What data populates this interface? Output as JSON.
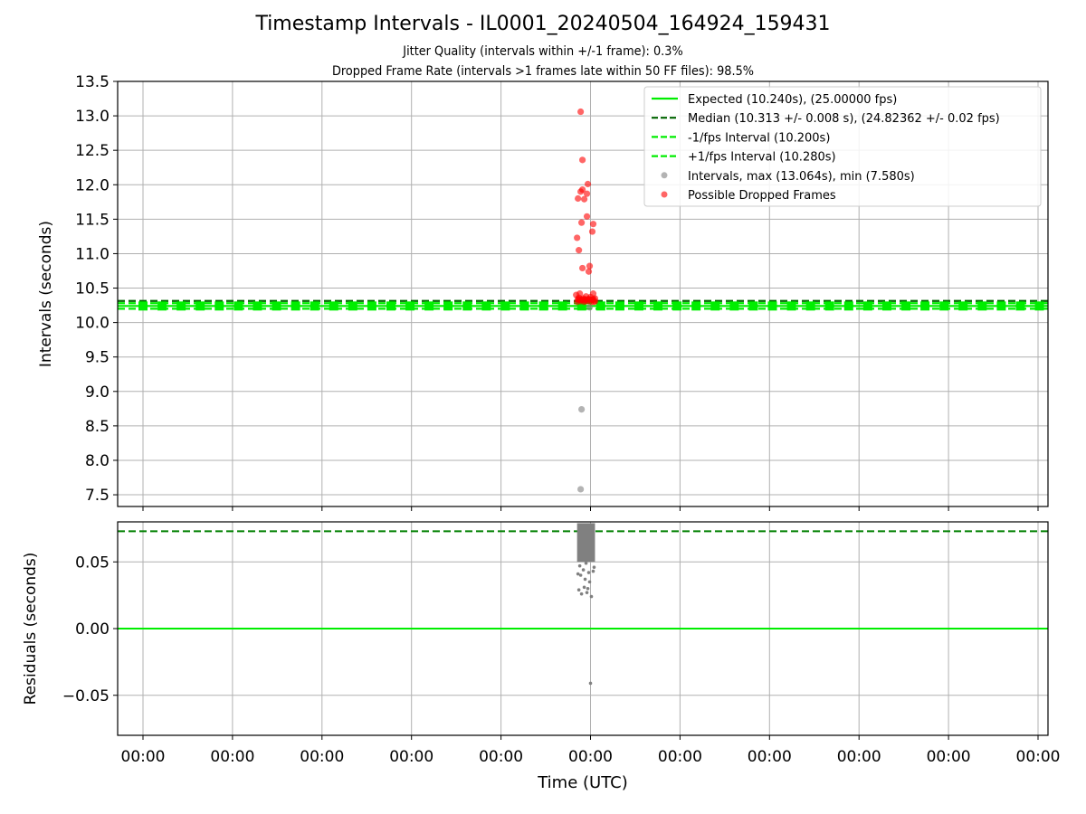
{
  "chart_data": [
    {
      "id": "intervals",
      "type": "scatter",
      "title": "Timestamp Intervals - IL0001_20240504_164924_159431",
      "subtitle": [
        "Jitter Quality (intervals within +/-1 frame): 0.3%",
        "Dropped Frame Rate (intervals >1 frames late within 50 FF files): 98.5%"
      ],
      "xlabel": "",
      "ylabel": "Intervals (seconds)",
      "ylim": [
        7.33,
        13.5
      ],
      "yticks": [
        7.5,
        8.0,
        8.5,
        9.0,
        9.5,
        10.0,
        10.5,
        11.0,
        11.5,
        12.0,
        12.5,
        13.0,
        13.5
      ],
      "ytick_labels": [
        "7.5",
        "8.0",
        "8.5",
        "9.0",
        "9.5",
        "10.0",
        "10.5",
        "11.0",
        "11.5",
        "12.0",
        "12.5",
        "13.0",
        "13.5"
      ],
      "xtick_labels": [
        "00:00",
        "00:00",
        "00:00",
        "00:00",
        "00:00",
        "00:00",
        "00:00",
        "00:00",
        "00:00",
        "00:00",
        "00:00"
      ],
      "grid": true,
      "legend_position": "top-right",
      "reference_lines": [
        {
          "name": "Expected (10.240s), (25.00000 fps)",
          "y": 10.24,
          "color": "#00ee00",
          "style": "solid"
        },
        {
          "name": "Median (10.313 +/- 0.008 s), (24.82362 +/- 0.02 fps)",
          "y": 10.313,
          "color": "#006400",
          "style": "dashed"
        },
        {
          "name": "-1/fps Interval (10.200s)",
          "y": 10.2,
          "color": "#00ee00",
          "style": "dashed"
        },
        {
          "name": "+1/fps Interval (10.280s)",
          "y": 10.28,
          "color": "#00ee00",
          "style": "dashed"
        }
      ],
      "series": [
        {
          "name": "Intervals, max (13.064s), min (7.580s)",
          "color": "#808080",
          "points": [
            {
              "x": 4.89,
              "y": 7.58
            },
            {
              "x": 4.9,
              "y": 8.74
            },
            {
              "x": 4.99,
              "y": 10.22
            }
          ]
        },
        {
          "name": "Possible Dropped Frames",
          "color": "#ff0000",
          "points": [
            {
              "x": 4.89,
              "y": 13.06
            },
            {
              "x": 4.91,
              "y": 12.36
            },
            {
              "x": 4.97,
              "y": 12.01
            },
            {
              "x": 4.91,
              "y": 11.93
            },
            {
              "x": 4.89,
              "y": 11.9
            },
            {
              "x": 4.96,
              "y": 11.87
            },
            {
              "x": 4.86,
              "y": 11.8
            },
            {
              "x": 4.93,
              "y": 11.79
            },
            {
              "x": 4.96,
              "y": 11.54
            },
            {
              "x": 4.9,
              "y": 11.45
            },
            {
              "x": 5.03,
              "y": 11.43
            },
            {
              "x": 5.02,
              "y": 11.32
            },
            {
              "x": 4.85,
              "y": 11.23
            },
            {
              "x": 4.87,
              "y": 11.05
            },
            {
              "x": 4.99,
              "y": 10.82
            },
            {
              "x": 4.91,
              "y": 10.79
            },
            {
              "x": 4.98,
              "y": 10.74
            },
            {
              "x": 4.84,
              "y": 10.4
            },
            {
              "x": 4.88,
              "y": 10.42
            },
            {
              "x": 4.95,
              "y": 10.38
            },
            {
              "x": 5.03,
              "y": 10.42
            },
            {
              "x": 4.86,
              "y": 10.34
            },
            {
              "x": 4.9,
              "y": 10.33
            },
            {
              "x": 4.94,
              "y": 10.32
            },
            {
              "x": 4.98,
              "y": 10.34
            },
            {
              "x": 5.02,
              "y": 10.33
            },
            {
              "x": 5.05,
              "y": 10.31
            },
            {
              "x": 4.85,
              "y": 10.3
            },
            {
              "x": 4.89,
              "y": 10.31
            },
            {
              "x": 4.93,
              "y": 10.3
            },
            {
              "x": 4.97,
              "y": 10.31
            },
            {
              "x": 5.01,
              "y": 10.3
            },
            {
              "x": 5.05,
              "y": 10.35
            },
            {
              "x": 4.87,
              "y": 10.36
            },
            {
              "x": 4.92,
              "y": 10.35
            },
            {
              "x": 5.0,
              "y": 10.37
            },
            {
              "x": 5.04,
              "y": 10.3
            }
          ]
        }
      ]
    },
    {
      "id": "residuals",
      "type": "scatter",
      "xlabel": "Time (UTC)",
      "ylabel": "Residuals (seconds)",
      "ylim": [
        -0.08,
        0.08
      ],
      "yticks": [
        -0.05,
        0.0,
        0.05
      ],
      "ytick_labels": [
        "−0.05",
        "0.00",
        "0.05"
      ],
      "xtick_labels": [
        "00:00",
        "00:00",
        "00:00",
        "00:00",
        "00:00",
        "00:00",
        "00:00",
        "00:00",
        "00:00",
        "00:00",
        "00:00"
      ],
      "grid": true,
      "reference_lines": [
        {
          "y": 0.073,
          "color": "#008000",
          "style": "dashed"
        },
        {
          "y": 0.0,
          "color": "#00ee00",
          "style": "solid"
        }
      ],
      "series": [
        {
          "color": "#808080",
          "points": [
            {
              "x": 5.0,
              "y": -0.041
            },
            {
              "x": 4.87,
              "y": 0.029
            },
            {
              "x": 4.9,
              "y": 0.026
            },
            {
              "x": 4.96,
              "y": 0.027
            },
            {
              "x": 5.01,
              "y": 0.024
            },
            {
              "x": 4.93,
              "y": 0.031
            },
            {
              "x": 4.97,
              "y": 0.03
            },
            {
              "x": 4.99,
              "y": 0.035
            },
            {
              "x": 4.94,
              "y": 0.037
            },
            {
              "x": 4.86,
              "y": 0.041
            },
            {
              "x": 4.89,
              "y": 0.04
            },
            {
              "x": 4.98,
              "y": 0.042
            },
            {
              "x": 5.03,
              "y": 0.043
            },
            {
              "x": 4.92,
              "y": 0.044
            },
            {
              "x": 5.04,
              "y": 0.046
            },
            {
              "x": 4.88,
              "y": 0.047
            },
            {
              "x": 4.95,
              "y": 0.049
            }
          ],
          "dense_band": {
            "x_range": [
              4.85,
              5.05
            ],
            "y_range": [
              0.05,
              0.079
            ]
          }
        }
      ]
    }
  ]
}
